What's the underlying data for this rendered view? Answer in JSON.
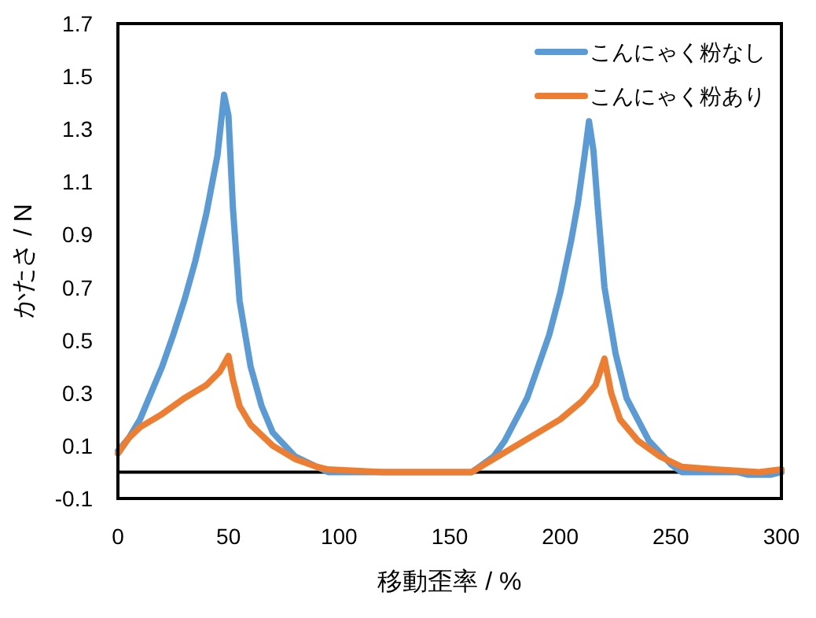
{
  "chart_data": {
    "type": "line",
    "xlabel": "移動歪率 / %",
    "ylabel": "かたさ / N",
    "xlim": [
      0,
      300
    ],
    "xticks": [
      0,
      50,
      100,
      150,
      200,
      250,
      300
    ],
    "ylim": [
      -0.1,
      1.7
    ],
    "yticks": [
      -0.1,
      0.1,
      0.3,
      0.5,
      0.7,
      0.9,
      1.1,
      1.3,
      1.5,
      1.7
    ],
    "grid": false,
    "legend": "top right",
    "marker": "none",
    "line_style": "solid",
    "ref_lines": [
      {
        "axis": "y",
        "value": 0,
        "color": "#000000"
      }
    ],
    "series": [
      {
        "name": "こんにゃく粉なし",
        "color": "#5b9bd5",
        "x": [
          0,
          5,
          10,
          15,
          20,
          25,
          30,
          35,
          40,
          45,
          48,
          50,
          52,
          55,
          60,
          65,
          70,
          80,
          90,
          95,
          120,
          140,
          160,
          165,
          170,
          175,
          180,
          185,
          190,
          195,
          200,
          205,
          208,
          211,
          213,
          215,
          217,
          220,
          225,
          230,
          240,
          250,
          255,
          280,
          285,
          295,
          300
        ],
        "values": [
          0.08,
          0.13,
          0.2,
          0.3,
          0.4,
          0.52,
          0.65,
          0.8,
          0.98,
          1.2,
          1.43,
          1.35,
          1.0,
          0.65,
          0.4,
          0.25,
          0.15,
          0.06,
          0.02,
          0,
          0,
          0,
          0,
          0.03,
          0.06,
          0.12,
          0.2,
          0.28,
          0.4,
          0.52,
          0.68,
          0.88,
          1.02,
          1.2,
          1.33,
          1.22,
          1.0,
          0.7,
          0.45,
          0.28,
          0.12,
          0.03,
          0,
          0,
          -0.01,
          -0.01,
          0
        ]
      },
      {
        "name": "こんにゃく粉あり",
        "color": "#ed7d31",
        "x": [
          0,
          5,
          10,
          20,
          30,
          40,
          46,
          50,
          52,
          55,
          60,
          70,
          80,
          90,
          95,
          120,
          140,
          160,
          170,
          180,
          190,
          200,
          210,
          216,
          220,
          223,
          227,
          235,
          245,
          255,
          270,
          290,
          300
        ],
        "values": [
          0.07,
          0.13,
          0.17,
          0.22,
          0.28,
          0.33,
          0.38,
          0.44,
          0.35,
          0.25,
          0.18,
          0.1,
          0.05,
          0.02,
          0.01,
          0,
          0,
          0,
          0.05,
          0.1,
          0.15,
          0.2,
          0.27,
          0.33,
          0.43,
          0.3,
          0.2,
          0.12,
          0.06,
          0.02,
          0.01,
          0,
          0.01
        ]
      }
    ]
  }
}
